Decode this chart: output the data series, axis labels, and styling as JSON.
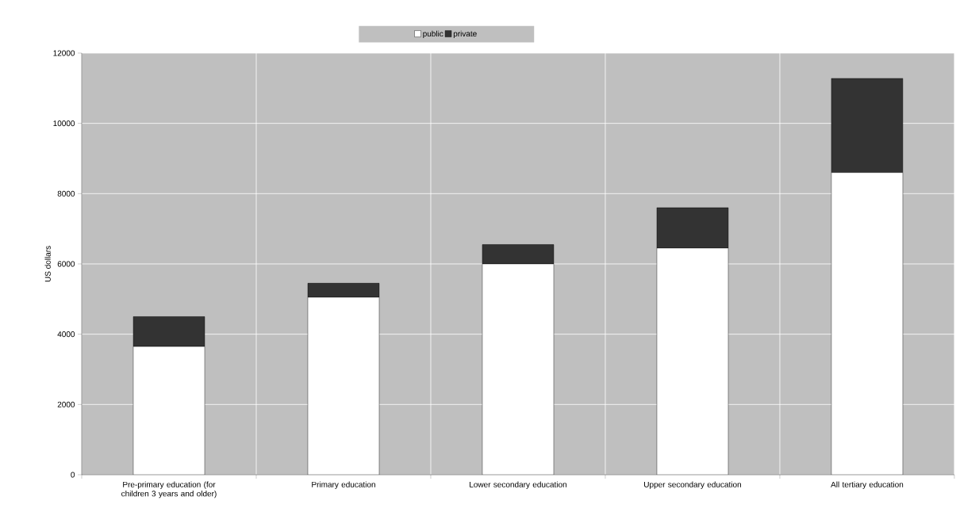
{
  "chart_data": {
    "type": "bar",
    "stacked": true,
    "ylabel": "US dollars",
    "categories": [
      "Pre-primary education (for children 3 years and older)",
      "Primary education",
      "Lower secondary education",
      "Upper secondary education",
      "All tertiary education"
    ],
    "series": [
      {
        "name": "public",
        "color": "#ffffff",
        "values": [
          3650,
          5050,
          6000,
          6450,
          8600
        ]
      },
      {
        "name": "private",
        "color": "#333333",
        "values": [
          850,
          400,
          550,
          1150,
          2680
        ]
      }
    ],
    "ylim": [
      0,
      12000
    ],
    "yticks": [
      0,
      2000,
      4000,
      6000,
      8000,
      10000,
      12000
    ],
    "grid": true,
    "legend": "top"
  }
}
